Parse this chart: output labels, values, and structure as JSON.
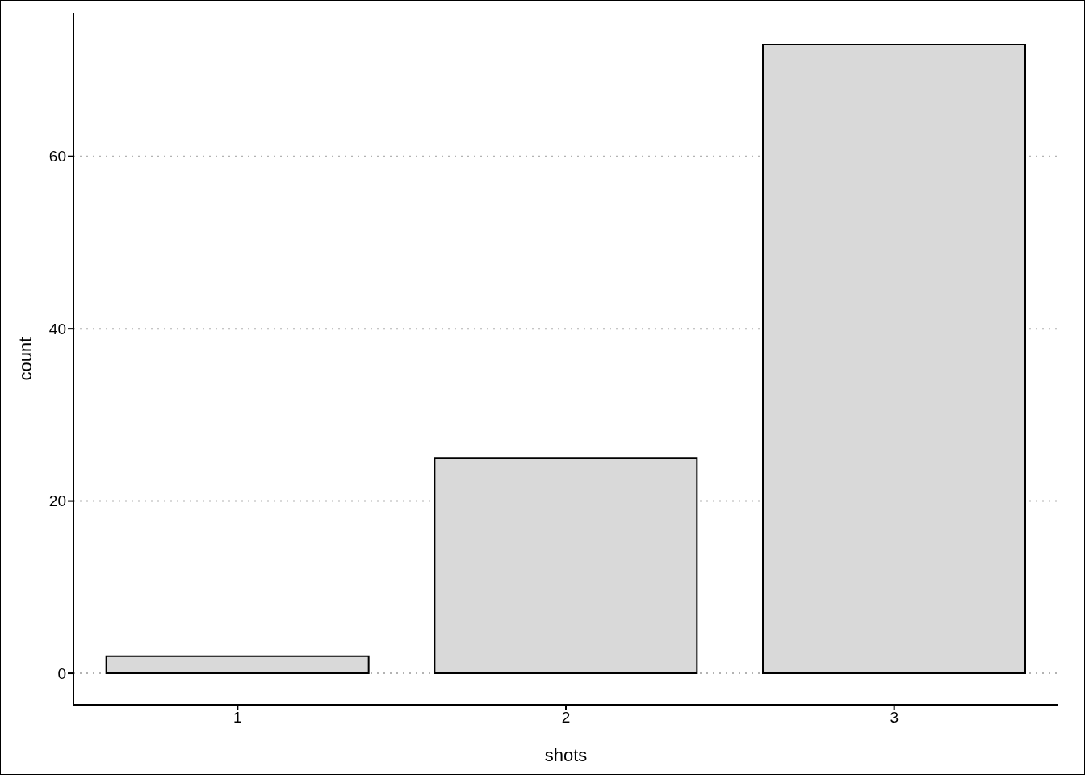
{
  "chart_data": {
    "type": "bar",
    "xlabel": "shots",
    "ylabel": "count",
    "categories": [
      "1",
      "2",
      "3"
    ],
    "values": [
      2,
      25,
      73
    ],
    "color": "#d9d9d9",
    "ylim": [
      -3.65,
      76.65
    ],
    "yticks": [
      0,
      20,
      40,
      60
    ],
    "grid": "y"
  }
}
